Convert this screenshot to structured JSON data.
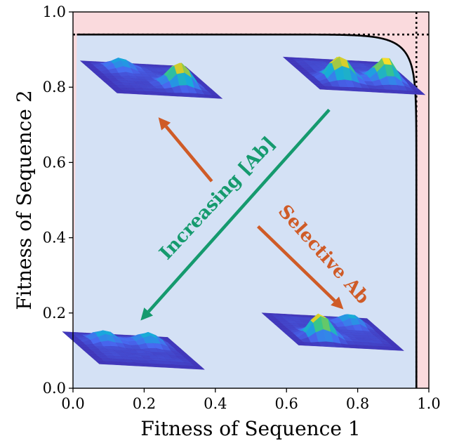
{
  "chart_data": {
    "type": "line",
    "xlabel": "Fitness of Sequence 1",
    "ylabel": "Fitness of Sequence 2",
    "xlim": [
      0.0,
      1.0
    ],
    "ylim": [
      0.0,
      1.0
    ],
    "xticks": [
      "0.0",
      "0.2",
      "0.4",
      "0.6",
      "0.8",
      "1.0"
    ],
    "yticks": [
      "0.0",
      "0.2",
      "0.4",
      "0.6",
      "0.8",
      "1.0"
    ],
    "xtick_values": [
      0,
      0.2,
      0.4,
      0.6,
      0.8,
      1.0
    ],
    "ytick_values": [
      0,
      0.2,
      0.4,
      0.6,
      0.8,
      1.0
    ],
    "max_fitness": 0.94,
    "max_fitness_x": 0.965,
    "front_exponent": 0.12,
    "colors": {
      "outer": "#fadadd",
      "inner": "#d4e1f5",
      "curve": "#000000",
      "green": "#159a6e",
      "orange": "#cf5b27"
    },
    "annotations": [
      {
        "text": "Increasing [Ab]",
        "color": "green"
      },
      {
        "text": "Selective Ab",
        "color": "orange"
      }
    ],
    "arrows": [
      {
        "name": "green-arrow",
        "from": [
          0.72,
          0.74
        ],
        "to": [
          0.19,
          0.18
        ],
        "color": "green"
      },
      {
        "name": "orange-arrow-up",
        "from": [
          0.39,
          0.55
        ],
        "to": [
          0.24,
          0.72
        ],
        "color": "orange"
      },
      {
        "name": "orange-arrow-down",
        "from": [
          0.52,
          0.43
        ],
        "to": [
          0.76,
          0.21
        ],
        "color": "orange"
      }
    ],
    "surfaces": [
      {
        "name": "surface-top-left",
        "at": [
          0.22,
          0.82
        ],
        "peaks": [
          [
            0.3,
            0.25,
            0.4
          ],
          [
            0.7,
            0.7,
            1.0
          ]
        ]
      },
      {
        "name": "surface-top-right",
        "at": [
          0.79,
          0.83
        ],
        "peaks": [
          [
            0.3,
            0.7,
            1.0
          ],
          [
            0.75,
            0.65,
            1.0
          ]
        ]
      },
      {
        "name": "surface-bottom-left",
        "at": [
          0.17,
          0.1
        ],
        "peaks": [
          [
            0.3,
            0.3,
            0.45
          ],
          [
            0.72,
            0.3,
            0.45
          ]
        ]
      },
      {
        "name": "surface-bottom-right",
        "at": [
          0.73,
          0.15
        ],
        "peaks": [
          [
            0.3,
            0.75,
            1.0
          ],
          [
            0.75,
            0.3,
            0.45
          ]
        ]
      }
    ]
  }
}
